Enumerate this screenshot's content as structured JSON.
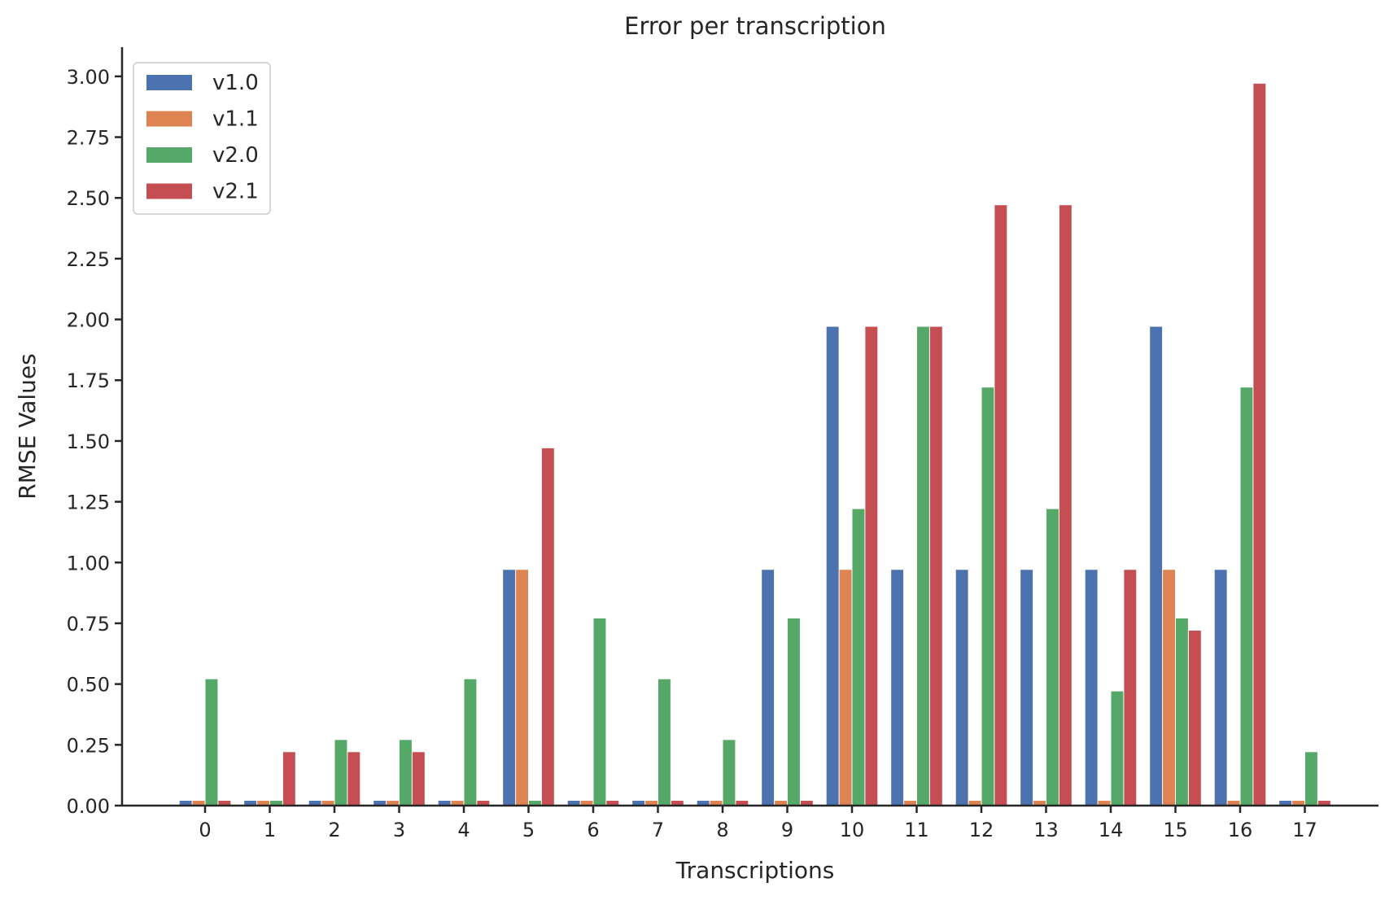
{
  "chart_data": {
    "type": "bar",
    "title": "Error per transcription",
    "xlabel": "Transcriptions",
    "ylabel": "RMSE Values",
    "categories": [
      "0",
      "1",
      "2",
      "3",
      "4",
      "5",
      "6",
      "7",
      "8",
      "9",
      "10",
      "11",
      "12",
      "13",
      "14",
      "15",
      "16",
      "17"
    ],
    "ylim": [
      0,
      3.12
    ],
    "yticks": [
      "0.00",
      "0.25",
      "0.50",
      "0.75",
      "1.00",
      "1.25",
      "1.50",
      "1.75",
      "2.00",
      "2.25",
      "2.50",
      "2.75",
      "3.00"
    ],
    "grid": false,
    "legend_position": "top-left",
    "series": [
      {
        "name": "v1.0",
        "color": "#4c72b0",
        "values": [
          0.02,
          0.02,
          0.02,
          0.02,
          0.02,
          0.97,
          0.02,
          0.02,
          0.02,
          0.97,
          1.97,
          0.97,
          0.97,
          0.97,
          0.97,
          1.97,
          0.97,
          0.02
        ]
      },
      {
        "name": "v1.1",
        "color": "#dd8452",
        "values": [
          0.02,
          0.02,
          0.02,
          0.02,
          0.02,
          0.97,
          0.02,
          0.02,
          0.02,
          0.02,
          0.97,
          0.02,
          0.02,
          0.02,
          0.02,
          0.97,
          0.02,
          0.02
        ]
      },
      {
        "name": "v2.0",
        "color": "#55a868",
        "values": [
          0.52,
          0.02,
          0.27,
          0.27,
          0.52,
          0.02,
          0.77,
          0.52,
          0.27,
          0.77,
          1.22,
          1.97,
          1.72,
          1.22,
          0.47,
          0.77,
          1.72,
          0.22
        ]
      },
      {
        "name": "v2.1",
        "color": "#c44e52",
        "values": [
          0.02,
          0.22,
          0.22,
          0.22,
          0.02,
          1.47,
          0.02,
          0.02,
          0.02,
          0.02,
          1.97,
          1.97,
          2.47,
          2.47,
          0.97,
          0.72,
          2.97,
          0.02
        ]
      }
    ]
  }
}
